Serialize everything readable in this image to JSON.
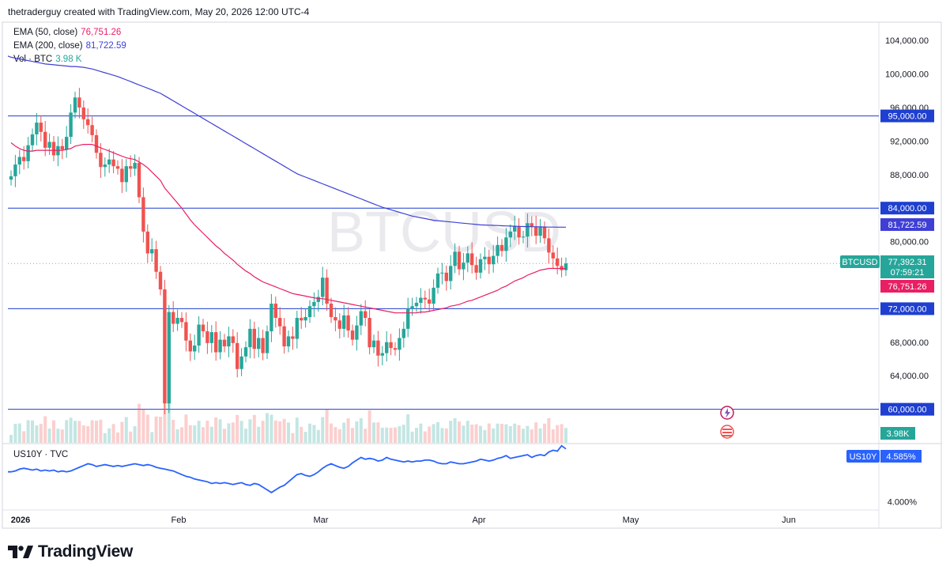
{
  "header": "thetraderguy created with TradingView.com, May 20, 2026 12:00 UTC-4",
  "watermark": "BTCUSD",
  "brand": "TradingView",
  "indicators": [
    {
      "label": "EMA (50, close)",
      "value": "76,751.26",
      "color": "#e91e63"
    },
    {
      "label": "EMA (200, close)",
      "value": "81,722.59",
      "color": "#3f3fd6"
    },
    {
      "label": "Vol · BTC",
      "value": "3.98 K",
      "color": "#26a69a"
    }
  ],
  "colors": {
    "up": "#26a69a",
    "down": "#ef5350",
    "ema50": "#e91e63",
    "ema200": "#3f3fd6",
    "hline": "#1e3fd0",
    "us10y": "#2962ff",
    "price_tag": "#26a69a"
  },
  "chart_data": {
    "type": "candlestick",
    "symbol": "BTCUSD",
    "ylim": [
      56000,
      106000
    ],
    "y_ticks": [
      "104,000.00",
      "100,000.00",
      "96,000.00",
      "92,000.00",
      "88,000.00",
      "80,000.00",
      "68,000.00",
      "64,000.00"
    ],
    "x_labels": [
      "2026",
      "Feb",
      "Mar",
      "Apr",
      "May",
      "Jun"
    ],
    "horizontal_lines": [
      {
        "value": 95000,
        "label": "95,000.00"
      },
      {
        "value": 84000,
        "label": "84,000.00"
      },
      {
        "value": 72000,
        "label": "72,000.00"
      },
      {
        "value": 60000,
        "label": "60,000.00"
      }
    ],
    "last_price": {
      "label": "BTCUSD",
      "value": 77392.31,
      "text": "77,392.31",
      "countdown": "07:59:21"
    },
    "ema50_tag": {
      "value": 76751.26,
      "text": "76,751.26"
    },
    "ema200_tag": {
      "value": 81722.59,
      "text": "81,722.59"
    },
    "volume_tag": "3.98K",
    "closes": [
      87800,
      89200,
      90100,
      89600,
      91500,
      92800,
      94200,
      93100,
      91200,
      91900,
      90300,
      91400,
      91000,
      92500,
      95400,
      97200,
      96000,
      94600,
      93900,
      92700,
      90600,
      88900,
      89200,
      89800,
      89000,
      88700,
      87100,
      89000,
      88700,
      89400,
      85300,
      81200,
      78600,
      79100,
      76400,
      74300,
      60700,
      71600,
      70200,
      70900,
      70400,
      68200,
      66900,
      67600,
      70100,
      69300,
      67900,
      69200,
      66800,
      68300,
      67500,
      68700,
      67900,
      64800,
      66300,
      67400,
      69600,
      67200,
      68500,
      66700,
      69300,
      72600,
      70900,
      69900,
      67500,
      68700,
      68400,
      70900,
      70600,
      71000,
      72300,
      72800,
      73400,
      75700,
      72600,
      71000,
      70600,
      69600,
      71200,
      69400,
      68300,
      70000,
      71700,
      70900,
      67400,
      68200,
      66400,
      66700,
      68000,
      67300,
      67100,
      68500,
      69600,
      72000,
      72300,
      72700,
      73300,
      73100,
      72600,
      74500,
      76200,
      76300,
      75300,
      77100,
      78800,
      76700,
      77500,
      78600,
      77200,
      76300,
      77900,
      78200,
      77300,
      78300,
      79600,
      78900,
      80500,
      81200,
      81800,
      80500,
      80600,
      82200,
      81800,
      80700,
      81700,
      80400,
      78700,
      78000,
      77100,
      76600,
      77400
    ],
    "ema50": [
      91800,
      91400,
      91100,
      90900,
      90800,
      90800,
      90900,
      90900,
      90900,
      90900,
      90900,
      90900,
      90900,
      91000,
      91100,
      91400,
      91500,
      91600,
      91600,
      91600,
      91400,
      91200,
      91000,
      90800,
      90600,
      90400,
      90200,
      90000,
      89900,
      89800,
      89500,
      89200,
      88800,
      88300,
      87800,
      87300,
      86400,
      85800,
      85200,
      84600,
      84000,
      83300,
      82600,
      82000,
      81500,
      81000,
      80500,
      80000,
      79500,
      79100,
      78600,
      78200,
      77800,
      77300,
      76900,
      76500,
      76200,
      75800,
      75500,
      75200,
      75000,
      74800,
      74600,
      74400,
      74200,
      74000,
      73800,
      73700,
      73600,
      73500,
      73400,
      73300,
      73200,
      73200,
      73100,
      73000,
      72900,
      72800,
      72700,
      72600,
      72500,
      72400,
      72300,
      72200,
      72100,
      72000,
      71900,
      71800,
      71700,
      71600,
      71500,
      71500,
      71500,
      71500,
      71500,
      71500,
      71600,
      71600,
      71700,
      71800,
      71900,
      72000,
      72100,
      72300,
      72400,
      72500,
      72700,
      72900,
      73000,
      73200,
      73400,
      73600,
      73800,
      74000,
      74200,
      74500,
      74700,
      75000,
      75300,
      75500,
      75700,
      76000,
      76200,
      76400,
      76600,
      76700,
      76800,
      76800,
      76800,
      76800,
      76751
    ],
    "ema200": [
      102000,
      101900,
      101800,
      101700,
      101600,
      101500,
      101400,
      101300,
      101200,
      101150,
      101100,
      101050,
      101000,
      100950,
      100900,
      100900,
      100850,
      100800,
      100700,
      100600,
      100450,
      100300,
      100150,
      100000,
      99850,
      99700,
      99500,
      99300,
      99100,
      98900,
      98700,
      98500,
      98300,
      98100,
      97900,
      97700,
      97400,
      97100,
      96800,
      96500,
      96200,
      95900,
      95600,
      95300,
      95000,
      94700,
      94400,
      94100,
      93800,
      93500,
      93200,
      92900,
      92600,
      92300,
      92000,
      91700,
      91400,
      91100,
      90800,
      90500,
      90200,
      89900,
      89600,
      89300,
      89000,
      88700,
      88400,
      88100,
      87900,
      87700,
      87500,
      87300,
      87100,
      86900,
      86700,
      86500,
      86300,
      86100,
      85900,
      85700,
      85500,
      85300,
      85100,
      84900,
      84700,
      84500,
      84300,
      84100,
      83950,
      83800,
      83650,
      83500,
      83350,
      83200,
      83050,
      82950,
      82850,
      82750,
      82650,
      82550,
      82500,
      82450,
      82400,
      82350,
      82300,
      82250,
      82200,
      82150,
      82100,
      82050,
      82000,
      81980,
      81960,
      81940,
      81920,
      81900,
      81880,
      81860,
      81840,
      81820,
      81800,
      81790,
      81780,
      81770,
      81760,
      81750,
      81740,
      81735,
      81730,
      81725,
      81722
    ],
    "volume_label": "Vol · BTC",
    "us10y": {
      "label": "US10Y · TVC",
      "tag": "US10Y",
      "value_text": "4.585%",
      "ylim": [
        3.95,
        4.6
      ],
      "y_ticks": [
        "4.000%"
      ],
      "values": [
        4.33,
        4.34,
        4.36,
        4.37,
        4.36,
        4.35,
        4.36,
        4.34,
        4.35,
        4.34,
        4.35,
        4.33,
        4.34,
        4.33,
        4.34,
        4.36,
        4.38,
        4.4,
        4.42,
        4.41,
        4.39,
        4.4,
        4.41,
        4.4,
        4.39,
        4.4,
        4.39,
        4.4,
        4.41,
        4.42,
        4.41,
        4.4,
        4.41,
        4.4,
        4.38,
        4.37,
        4.36,
        4.35,
        4.34,
        4.32,
        4.3,
        4.28,
        4.27,
        4.25,
        4.24,
        4.23,
        4.22,
        4.2,
        4.21,
        4.2,
        4.21,
        4.2,
        4.19,
        4.2,
        4.21,
        4.19,
        4.18,
        4.2,
        4.19,
        4.16,
        4.13,
        4.1,
        4.13,
        4.16,
        4.18,
        4.22,
        4.26,
        4.3,
        4.31,
        4.29,
        4.28,
        4.3,
        4.33,
        4.37,
        4.4,
        4.42,
        4.4,
        4.38,
        4.37,
        4.39,
        4.43,
        4.46,
        4.49,
        4.47,
        4.48,
        4.47,
        4.45,
        4.46,
        4.49,
        4.47,
        4.46,
        4.45,
        4.44,
        4.45,
        4.44,
        4.45,
        4.45,
        4.46,
        4.46,
        4.45,
        4.43,
        4.42,
        4.42,
        4.44,
        4.43,
        4.42,
        4.42,
        4.43,
        4.44,
        4.45,
        4.47,
        4.46,
        4.45,
        4.46,
        4.48,
        4.49,
        4.51,
        4.48,
        4.49,
        4.5,
        4.51,
        4.52,
        4.49,
        4.51,
        4.52,
        4.51,
        4.55,
        4.57,
        4.56,
        4.62,
        4.585
      ]
    }
  }
}
